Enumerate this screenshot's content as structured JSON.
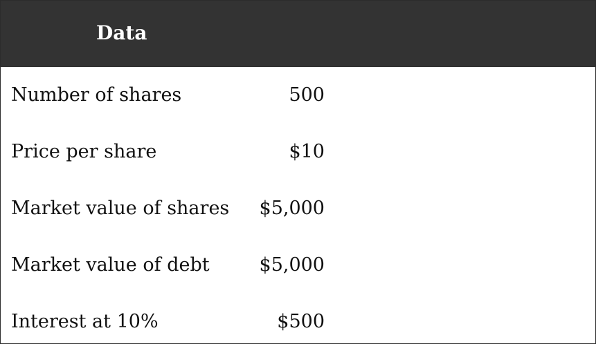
{
  "table": {
    "header": "Data",
    "rows": [
      {
        "label": "Number of shares",
        "value": "500"
      },
      {
        "label": "Price per share",
        "value": "$10"
      },
      {
        "label": "Market value of shares",
        "value": "$5,000"
      },
      {
        "label": "Market value of debt",
        "value": "$5,000"
      },
      {
        "label": "Interest at 10%",
        "value": "$500"
      }
    ]
  },
  "colors": {
    "header_background": "#333333",
    "header_text": "#ffffff",
    "body_text": "#111111"
  }
}
